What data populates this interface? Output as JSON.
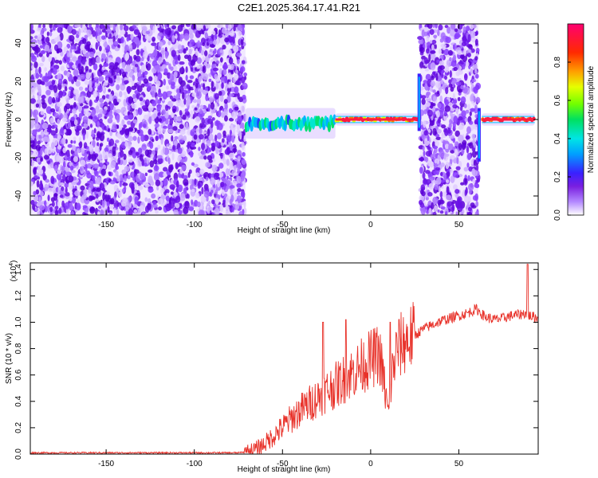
{
  "title": "C2E1.2025.364.17.41.R21",
  "chart_data": [
    {
      "type": "heatmap",
      "title": "C2E1.2025.364.17.41.R21",
      "xlabel": "Height of straight line (km)",
      "ylabel": "Frequency (Hz)",
      "xlim": [
        -193,
        95
      ],
      "ylim": [
        -50,
        50
      ],
      "x_ticks": [
        -150,
        -100,
        -50,
        0,
        50
      ],
      "y_ticks": [
        -40,
        -20,
        0,
        20,
        40
      ],
      "colorbar": {
        "label": "Normalized spectral amplitude",
        "range": [
          0.0,
          1.0
        ],
        "ticks": [
          0.0,
          0.2,
          0.4,
          0.6,
          0.8
        ],
        "tick_labels": [
          "0.0",
          "0.2",
          "0.4",
          "0.6",
          "0.8"
        ]
      },
      "regions": [
        {
          "x_range": [
            -193,
            -71
          ],
          "freq_range": [
            -50,
            50
          ],
          "amplitude": 0.1,
          "description": "noise"
        },
        {
          "x_range": [
            -71,
            -20
          ],
          "freq_center": -2,
          "freq_halfwidth": 5,
          "amplitude": 0.35
        },
        {
          "x_range": [
            -20,
            27
          ],
          "freq_center": 0,
          "freq_halfwidth": 2,
          "amplitude": 0.9
        },
        {
          "x_range": [
            28,
            61
          ],
          "freq_range": [
            -50,
            50
          ],
          "amplitude": 0.1,
          "description": "noise"
        },
        {
          "x_range": [
            63,
            93
          ],
          "freq_center": 0,
          "freq_halfwidth": 2,
          "amplitude": 1.0
        }
      ]
    },
    {
      "type": "line",
      "xlabel": "Height of straight line (km)",
      "ylabel": "SNR (10 * v/v)",
      "y_scale_label": "(x10",
      "y_scale_exp": "4",
      "y_scale_close": ")",
      "xlim": [
        -193,
        95
      ],
      "ylim": [
        0,
        1.45
      ],
      "x_ticks": [
        -150,
        -100,
        -50,
        0,
        50
      ],
      "y_ticks": [
        0.0,
        0.2,
        0.4,
        0.6,
        0.8,
        1.0,
        1.2,
        1.4
      ],
      "y_tick_labels": [
        "0.0",
        "0.2",
        "0.4",
        "0.6",
        "0.8",
        "1.0",
        "1.2",
        "1.4"
      ],
      "series": [
        {
          "color": "#e8322a",
          "x": [
            -193,
            -150,
            -100,
            -75,
            -70,
            -65,
            -60,
            -55,
            -50,
            -45,
            -40,
            -35,
            -30,
            -25,
            -20,
            -15,
            -10,
            -5,
            0,
            5,
            8,
            10,
            12,
            15,
            20,
            25,
            30,
            35,
            40,
            45,
            50,
            55,
            60,
            65,
            70,
            75,
            80,
            85,
            88,
            90,
            95
          ],
          "y": [
            0.01,
            0.01,
            0.01,
            0.01,
            0.02,
            0.04,
            0.08,
            0.14,
            0.2,
            0.27,
            0.33,
            0.38,
            0.43,
            0.48,
            0.52,
            0.57,
            0.62,
            0.67,
            0.72,
            0.76,
            0.5,
            0.3,
            0.6,
            0.8,
            0.86,
            0.9,
            0.95,
            0.98,
            1.01,
            1.03,
            1.05,
            1.07,
            1.1,
            1.04,
            1.02,
            1.03,
            1.05,
            1.06,
            1.07,
            1.05,
            1.03
          ],
          "peaks": [
            {
              "x": 89,
              "y": 1.44
            },
            {
              "x": -27,
              "y": 1.0
            },
            {
              "x": -14,
              "y": 1.02
            },
            {
              "x": 11,
              "y": 1.0
            }
          ]
        }
      ]
    }
  ]
}
